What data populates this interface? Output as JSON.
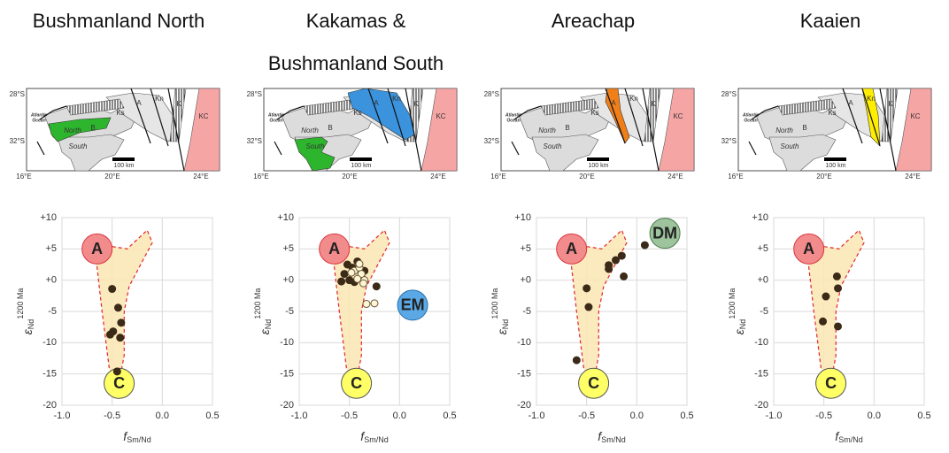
{
  "chart_data": [
    {
      "type": "scatter",
      "title": "Bushmanland North",
      "xlabel": {
        "symbol": "f",
        "sub": "Sm/Nd"
      },
      "ylabel": {
        "symbol": "ε",
        "sub": "Nd",
        "sup": "1200 Ma"
      },
      "xlim": [
        -1,
        0.5
      ],
      "ylim": [
        -20,
        10
      ],
      "xticks": [
        {
          "value": -1,
          "label": "-1.0"
        },
        {
          "value": -0.5,
          "label": "-0.5"
        },
        {
          "value": 0,
          "label": "0.0"
        },
        0.5
      ],
      "yticks": [
        {
          "value": 10,
          "label": "+10"
        },
        {
          "value": 5,
          "label": "+5"
        },
        {
          "value": 0,
          "label": "+0"
        },
        -5,
        -10,
        -15,
        -20
      ],
      "grid": true,
      "series": [
        {
          "color": "#3b2a17",
          "edge": "#3b2a17",
          "x": [
            -0.5,
            -0.44,
            -0.41,
            -0.49,
            -0.52,
            -0.42,
            -0.45
          ],
          "values": [
            -1.4,
            -4.4,
            -6.8,
            -8.2,
            -8.7,
            -9.2,
            -14.6
          ]
        }
      ],
      "field": {
        "color": "#fbe6b4",
        "edge": "#e0262b",
        "x": [
          -0.68,
          -0.55,
          -0.35,
          -0.15,
          -0.1,
          -0.2,
          -0.33,
          -0.38,
          -0.38,
          -0.42,
          -0.48,
          -0.53,
          -0.6,
          -0.65
        ],
        "y": [
          5,
          5.5,
          5,
          8,
          6,
          3,
          -1,
          -5,
          -12,
          -15.5,
          -16,
          -14,
          -5,
          2
        ]
      },
      "end_members": [
        {
          "label": "A",
          "x": -0.65,
          "y": 5,
          "color": "#f28b8b",
          "edge": "#d9363e"
        },
        {
          "label": "C",
          "x": -0.43,
          "y": -16.5,
          "color": "#ffff66",
          "edge": "#555555"
        }
      ],
      "map_highlights": [
        {
          "region": 5,
          "color": "#2db62d"
        }
      ]
    },
    {
      "type": "scatter",
      "title": "Kakamas & Bushmanland South",
      "xlabel": {
        "symbol": "f",
        "sub": "Sm/Nd"
      },
      "ylabel": {
        "symbol": "ε",
        "sub": "Nd",
        "sup": "1200 Ma"
      },
      "xlim": [
        -1,
        0.5
      ],
      "ylim": [
        -20,
        10
      ],
      "xticks": [
        {
          "value": -1,
          "label": "-1.0"
        },
        {
          "value": -0.5,
          "label": "-0.5"
        },
        {
          "value": 0,
          "label": "0.0"
        },
        0.5
      ],
      "yticks": [
        {
          "value": 10,
          "label": "+10"
        },
        {
          "value": 5,
          "label": "+5"
        },
        {
          "value": 0,
          "label": "+0"
        },
        -5,
        -10,
        -15,
        -20
      ],
      "grid": true,
      "series": [
        {
          "color": "#3b2a17",
          "edge": "#3b2a17",
          "x": [
            -0.55,
            -0.5,
            -0.45,
            -0.52,
            -0.42,
            -0.38,
            -0.35,
            -0.47,
            -0.58,
            -0.23
          ],
          "values": [
            1.0,
            0,
            -0.3,
            2.5,
            3.0,
            0.5,
            1.5,
            2.0,
            -0.2,
            -1.0
          ]
        },
        {
          "color": "#fff6d5",
          "edge": "#6b5a3a",
          "x": [
            -0.45,
            -0.4,
            -0.38,
            -0.42,
            -0.35,
            -0.48,
            -0.33,
            -0.25,
            -0.4,
            -0.36
          ],
          "values": [
            1.5,
            2.0,
            1.0,
            0.2,
            0,
            1.2,
            -3.8,
            -3.7,
            2.6,
            -0.5
          ]
        }
      ],
      "field": {
        "color": "#fbe6b4",
        "edge": "#e0262b",
        "x": [
          -0.68,
          -0.55,
          -0.35,
          -0.15,
          -0.1,
          -0.2,
          -0.33,
          -0.38,
          -0.38,
          -0.42,
          -0.48,
          -0.53,
          -0.6,
          -0.65
        ],
        "y": [
          5,
          5.5,
          5,
          8,
          6,
          3,
          -1,
          -5,
          -12,
          -15.5,
          -16,
          -14,
          -5,
          2
        ]
      },
      "end_members": [
        {
          "label": "A",
          "x": -0.65,
          "y": 5,
          "color": "#f28b8b",
          "edge": "#d9363e"
        },
        {
          "label": "C",
          "x": -0.43,
          "y": -16.5,
          "color": "#ffff66",
          "edge": "#555555"
        },
        {
          "label": "EM",
          "x": 0.13,
          "y": -4,
          "color": "#5aa9e6",
          "edge": "#2a6fa8"
        }
      ],
      "map_highlights": [
        {
          "region": 0,
          "color": "#3a93dc"
        },
        {
          "region": 7,
          "color": "#2db62d"
        }
      ]
    },
    {
      "type": "scatter",
      "title": "Areachap",
      "xlabel": {
        "symbol": "f",
        "sub": "Sm/Nd"
      },
      "ylabel": {
        "symbol": "ε",
        "sub": "Nd",
        "sup": "1200 Ma"
      },
      "xlim": [
        -1,
        0.5
      ],
      "ylim": [
        -20,
        10
      ],
      "xticks": [
        {
          "value": -1,
          "label": "-1.0"
        },
        {
          "value": -0.5,
          "label": "-0.5"
        },
        {
          "value": 0,
          "label": "0.0"
        },
        0.5
      ],
      "yticks": [
        {
          "value": 10,
          "label": "+10"
        },
        {
          "value": 5,
          "label": "+5"
        },
        {
          "value": 0,
          "label": "+0"
        },
        -5,
        -10,
        -15,
        -20
      ],
      "grid": true,
      "series": [
        {
          "color": "#3b2a17",
          "edge": "#3b2a17",
          "x": [
            0.08,
            -0.15,
            -0.21,
            -0.28,
            -0.28,
            -0.13,
            -0.5,
            -0.48,
            -0.6
          ],
          "values": [
            5.6,
            3.9,
            3.2,
            2.4,
            1.8,
            0.6,
            -1.3,
            -4.3,
            -12.8
          ]
        }
      ],
      "field": {
        "color": "#fbe6b4",
        "edge": "#e0262b",
        "x": [
          -0.68,
          -0.55,
          -0.35,
          -0.15,
          -0.1,
          -0.2,
          -0.33,
          -0.38,
          -0.38,
          -0.42,
          -0.48,
          -0.53,
          -0.6,
          -0.65
        ],
        "y": [
          5,
          5.5,
          5,
          8,
          6,
          3,
          -1,
          -5,
          -12,
          -15.5,
          -16,
          -14,
          -5,
          2
        ]
      },
      "end_members": [
        {
          "label": "A",
          "x": -0.65,
          "y": 5,
          "color": "#f28b8b",
          "edge": "#d9363e"
        },
        {
          "label": "C",
          "x": -0.43,
          "y": -16.5,
          "color": "#ffff66",
          "edge": "#555555"
        },
        {
          "label": "DM",
          "x": 0.28,
          "y": 7.5,
          "color": "#9dc49d",
          "edge": "#4a7a4a"
        }
      ],
      "map_highlights": [
        {
          "region": 2,
          "color": "#f07f1a"
        }
      ]
    },
    {
      "type": "scatter",
      "title": "Kaaien",
      "xlabel": {
        "symbol": "f",
        "sub": "Sm/Nd"
      },
      "ylabel": {
        "symbol": "ε",
        "sub": "Nd",
        "sup": "1200 Ma"
      },
      "xlim": [
        -1,
        0.5
      ],
      "ylim": [
        -20,
        10
      ],
      "xticks": [
        {
          "value": -1,
          "label": "-1.0"
        },
        {
          "value": -0.5,
          "label": "-0.5"
        },
        {
          "value": 0,
          "label": "0.0"
        },
        0.5
      ],
      "yticks": [
        {
          "value": 10,
          "label": "+10"
        },
        {
          "value": 5,
          "label": "+5"
        },
        {
          "value": 0,
          "label": "+0"
        },
        -5,
        -10,
        -15,
        -20
      ],
      "grid": true,
      "series": [
        {
          "color": "#3b2a17",
          "edge": "#3b2a17",
          "x": [
            -0.37,
            -0.36,
            -0.48,
            -0.51,
            -0.36
          ],
          "values": [
            0.6,
            -1.3,
            -2.6,
            -6.6,
            -7.4
          ]
        }
      ],
      "field": {
        "color": "#fbe6b4",
        "edge": "#e0262b",
        "x": [
          -0.68,
          -0.55,
          -0.35,
          -0.15,
          -0.1,
          -0.2,
          -0.33,
          -0.38,
          -0.38,
          -0.42,
          -0.48,
          -0.53,
          -0.6,
          -0.65
        ],
        "y": [
          5,
          5.5,
          5,
          8,
          6,
          3,
          -1,
          -5,
          -12,
          -15.5,
          -16,
          -14,
          -5,
          2
        ]
      },
      "end_members": [
        {
          "label": "A",
          "x": -0.65,
          "y": 5,
          "color": "#f28b8b",
          "edge": "#d9363e"
        },
        {
          "label": "C",
          "x": -0.43,
          "y": -16.5,
          "color": "#ffff66",
          "edge": "#555555"
        }
      ],
      "map_highlights": [
        {
          "region": 1,
          "color": "#ffee00"
        }
      ]
    }
  ],
  "map": {
    "lat_labels": [
      "28°S",
      "32°S"
    ],
    "lon_labels": [
      "16°E",
      "20°E",
      "24°E"
    ],
    "ocean": [
      "Atlantic",
      "Ocean"
    ],
    "scale": "100 km",
    "regions": [
      "Ks",
      "Kn",
      "A",
      "K",
      "KC",
      "B",
      "North",
      "South"
    ]
  }
}
